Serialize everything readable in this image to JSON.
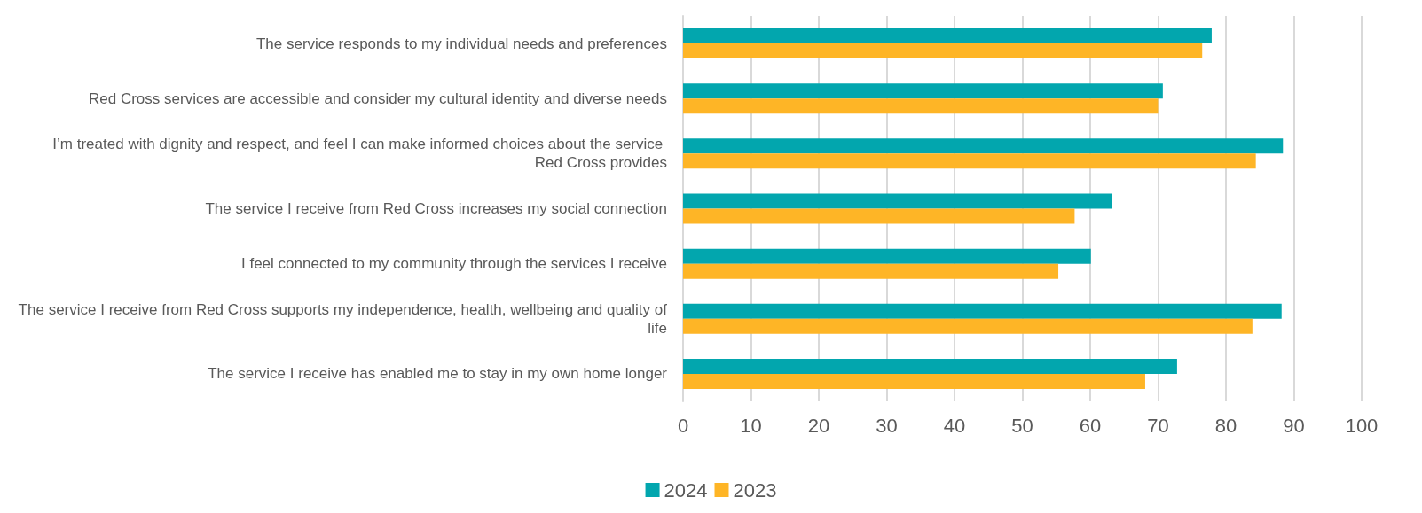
{
  "chart_data": {
    "type": "bar",
    "orientation": "horizontal",
    "categories": [
      "The service responds to my individual needs and preferences",
      "Red Cross services are accessible and consider my cultural identity and diverse needs",
      "I’m treated with dignity and respect, and feel I can make informed choices about the service Red Cross provides",
      "The service I receive from Red Cross increases my social connection",
      "I feel connected to my community through the services I receive",
      "The service I receive from Red Cross supports my independence, health, wellbeing and quality of life",
      "The service I receive has enabled me to stay in my own home longer"
    ],
    "series": [
      {
        "name": "2024",
        "color": "#02a6ae",
        "values": [
          77.9,
          70.7,
          88.4,
          63.2,
          60.1,
          88.2,
          72.8
        ]
      },
      {
        "name": "2023",
        "color": "#feb526",
        "values": [
          76.5,
          70.0,
          84.4,
          57.7,
          55.3,
          83.9,
          68.1
        ]
      }
    ],
    "xlim": [
      0,
      100
    ],
    "xticks": [
      0,
      10,
      20,
      30,
      40,
      50,
      60,
      70,
      80,
      90,
      100
    ],
    "grid": "x",
    "legend": "bottom"
  }
}
